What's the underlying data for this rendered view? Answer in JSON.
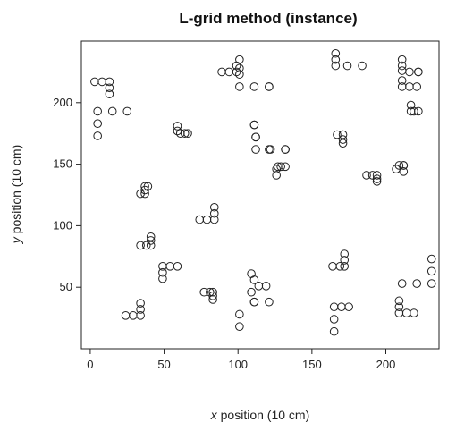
{
  "chart_data": {
    "type": "scatter",
    "title": "L-grid method (instance)",
    "xlabel_italic": "x",
    "xlabel_rest": " position (10 cm)",
    "ylabel_italic": "y",
    "ylabel_rest": " position (10 cm)",
    "xlim": [
      -6,
      236
    ],
    "ylim": [
      0,
      250
    ],
    "xticks": [
      0,
      50,
      100,
      150,
      200
    ],
    "yticks": [
      50,
      100,
      150,
      200
    ],
    "grid": false,
    "marker": "open-circle",
    "series": [
      {
        "x": [
          3,
          8,
          13,
          13,
          13,
          5,
          5,
          5,
          15,
          25,
          24,
          29,
          34,
          34,
          34,
          34,
          38,
          41,
          41,
          41,
          49,
          49,
          49,
          54,
          59,
          34,
          37,
          37,
          37,
          39,
          59,
          59,
          61,
          64,
          66,
          77,
          81,
          83,
          83,
          83,
          74,
          79,
          84,
          84,
          84,
          89,
          94,
          99,
          99,
          101,
          101,
          101,
          101,
          101,
          101,
          111,
          111,
          121,
          121,
          109,
          109,
          114,
          119,
          111,
          111,
          111,
          121,
          126,
          126,
          127,
          129,
          132,
          132,
          112,
          112,
          112,
          122,
          132,
          111,
          121,
          166,
          166,
          166,
          174,
          184,
          164,
          169,
          172,
          172,
          172,
          167,
          171,
          171,
          171,
          165,
          165,
          165,
          170,
          175,
          187,
          191,
          194,
          194,
          194,
          211,
          211,
          216,
          222,
          222,
          207,
          209,
          212,
          212,
          212,
          211,
          211,
          211,
          216,
          221,
          217,
          217,
          219,
          222,
          209,
          209,
          209,
          214,
          219,
          211,
          221,
          231,
          231,
          231
        ],
        "y": [
          217,
          217,
          217,
          212,
          207,
          193,
          183,
          173,
          193,
          193,
          27,
          27,
          27,
          32,
          37,
          84,
          84,
          84,
          88,
          91,
          57,
          62,
          67,
          67,
          67,
          126,
          126,
          129,
          132,
          132,
          181,
          177,
          175,
          175,
          175,
          46,
          46,
          46,
          43,
          40,
          105,
          105,
          105,
          110,
          115,
          225,
          225,
          225,
          230,
          235,
          228,
          223,
          213,
          28,
          18,
          213,
          182,
          213,
          162,
          46,
          61,
          51,
          51,
          56,
          38,
          38,
          38,
          141,
          146,
          148,
          148,
          148,
          162,
          172,
          162,
          172,
          162,
          162,
          182,
          213,
          230,
          240,
          235,
          230,
          230,
          67,
          67,
          67,
          72,
          77,
          174,
          174,
          170,
          167,
          34,
          24,
          14,
          34,
          34,
          141,
          141,
          141,
          136,
          138,
          235,
          230,
          225,
          225,
          225,
          146,
          149,
          149,
          144,
          149,
          226,
          218,
          213,
          213,
          213,
          198,
          193,
          193,
          193,
          39,
          34,
          29,
          29,
          29,
          53,
          53,
          53,
          63,
          73
        ]
      }
    ]
  }
}
